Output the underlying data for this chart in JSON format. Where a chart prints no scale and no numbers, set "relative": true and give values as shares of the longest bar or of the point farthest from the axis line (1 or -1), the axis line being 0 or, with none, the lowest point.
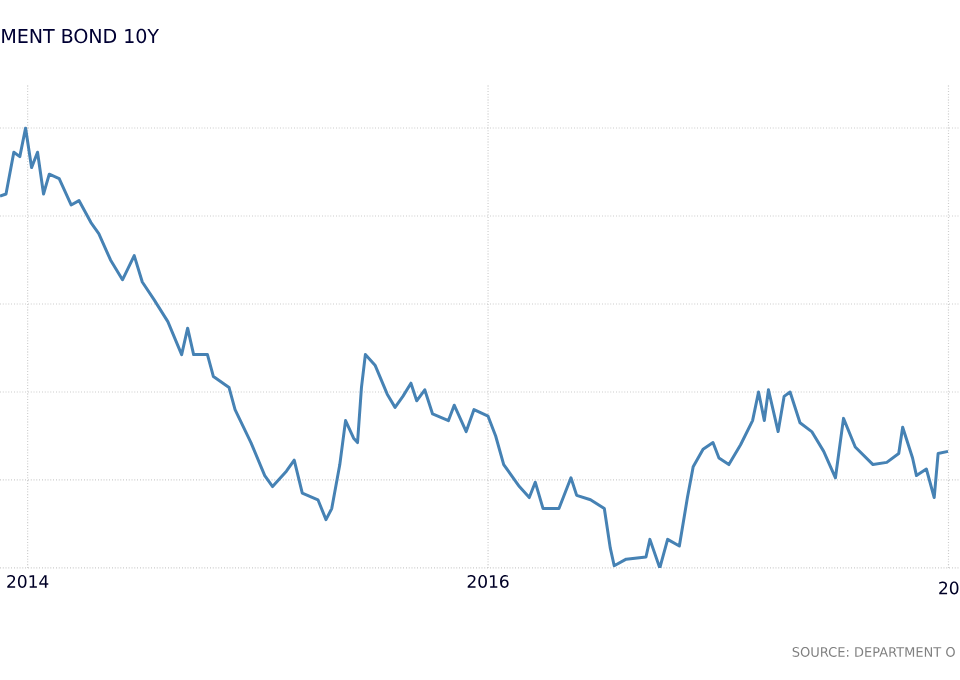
{
  "chart_data": {
    "type": "line",
    "title": "MENT BOND 10Y",
    "relative": true,
    "grid": true,
    "color": "#4682b4",
    "xlim": [
      2013.88,
      2018.05
    ],
    "xticks": [
      2014,
      2016,
      {
        "value": 2018,
        "label": null
      }
    ],
    "annotations": [
      "SOURCE: DEPARTMENT O",
      "20"
    ],
    "x": [
      2013.88,
      2013.906,
      2013.94,
      2013.966,
      2013.991,
      2014.017,
      2014.043,
      2014.069,
      2014.094,
      2014.137,
      2014.189,
      2014.223,
      2014.275,
      2014.309,
      2014.36,
      2014.412,
      2014.463,
      2014.498,
      2014.549,
      2014.609,
      2014.669,
      2014.695,
      2014.721,
      2014.781,
      2014.807,
      2014.875,
      2014.901,
      2014.97,
      2015.03,
      2015.064,
      2015.124,
      2015.158,
      2015.193,
      2015.261,
      2015.296,
      2015.321,
      2015.356,
      2015.381,
      2015.416,
      2015.433,
      2015.45,
      2015.467,
      2015.51,
      2015.562,
      2015.596,
      2015.63,
      2015.665,
      2015.69,
      2015.725,
      2015.759,
      2015.828,
      2015.853,
      2015.905,
      2015.939,
      2016.0,
      2016.033,
      2016.068,
      2016.136,
      2016.179,
      2016.205,
      2016.239,
      2016.308,
      2016.36,
      2016.385,
      2016.445,
      2016.505,
      2016.531,
      2016.548,
      2016.6,
      2016.686,
      2016.703,
      2016.746,
      2016.78,
      2016.831,
      2016.866,
      2016.891,
      2016.934,
      2016.977,
      2017.003,
      2017.046,
      2017.097,
      2017.149,
      2017.175,
      2017.2,
      2017.218,
      2017.26,
      2017.286,
      2017.312,
      2017.355,
      2017.406,
      2017.458,
      2017.509,
      2017.544,
      2017.595,
      2017.672,
      2017.732,
      2017.784,
      2017.801,
      2017.844,
      2017.861,
      2017.904,
      2017.938,
      2017.955,
      2017.998
    ],
    "values": [
      0.845,
      0.85,
      0.945,
      0.935,
      1.0,
      0.91,
      0.945,
      0.85,
      0.895,
      0.885,
      0.825,
      0.835,
      0.785,
      0.76,
      0.7,
      0.655,
      0.71,
      0.65,
      0.61,
      0.56,
      0.485,
      0.545,
      0.485,
      0.485,
      0.435,
      0.41,
      0.36,
      0.285,
      0.21,
      0.185,
      0.22,
      0.245,
      0.17,
      0.155,
      0.11,
      0.135,
      0.235,
      0.335,
      0.295,
      0.285,
      0.41,
      0.485,
      0.46,
      0.395,
      0.365,
      0.39,
      0.42,
      0.38,
      0.405,
      0.35,
      0.335,
      0.37,
      0.31,
      0.36,
      0.345,
      0.3,
      0.235,
      0.185,
      0.16,
      0.195,
      0.135,
      0.135,
      0.205,
      0.165,
      0.155,
      0.135,
      0.045,
      0.005,
      0.02,
      0.025,
      0.065,
      0.0,
      0.065,
      0.05,
      0.16,
      0.23,
      0.27,
      0.285,
      0.25,
      0.235,
      0.28,
      0.335,
      0.4,
      0.335,
      0.405,
      0.31,
      0.39,
      0.4,
      0.33,
      0.31,
      0.265,
      0.205,
      0.34,
      0.275,
      0.235,
      0.24,
      0.26,
      0.32,
      0.25,
      0.21,
      0.225,
      0.16,
      0.26,
      0.265
    ]
  }
}
